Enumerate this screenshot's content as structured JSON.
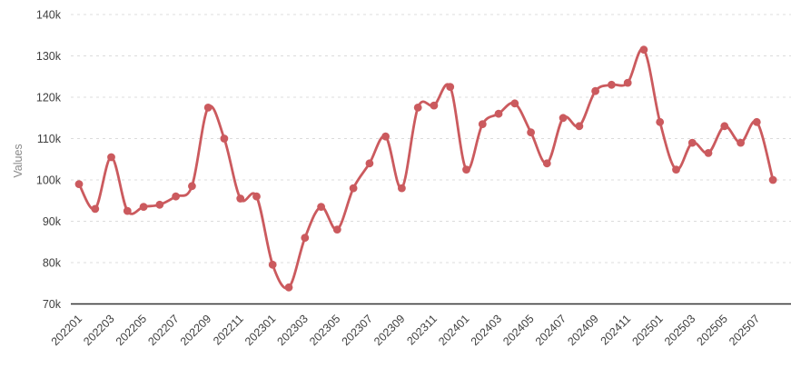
{
  "chart_data": {
    "type": "line",
    "title": "",
    "xlabel": "",
    "ylabel": "Values",
    "smooth": true,
    "grid": true,
    "legend": false,
    "x_labels_rotation": -45,
    "x_label_every": 2,
    "ylim": [
      70000,
      140000
    ],
    "y_ticks": [
      70000,
      80000,
      90000,
      100000,
      110000,
      120000,
      130000,
      140000
    ],
    "y_tick_labels": [
      "70k",
      "80k",
      "90k",
      "100k",
      "110k",
      "120k",
      "130k",
      "140k"
    ],
    "x_tick_labels_shown": [
      "202201",
      "202203",
      "202205",
      "202207",
      "202209",
      "202211",
      "202301",
      "202303",
      "202305",
      "202307",
      "202309",
      "202311",
      "202401",
      "202403",
      "202405",
      "202407",
      "202409",
      "202411",
      "202501",
      "202503",
      "202505",
      "202507"
    ],
    "x": [
      "202201",
      "202202",
      "202203",
      "202204",
      "202205",
      "202206",
      "202207",
      "202208",
      "202209",
      "202210",
      "202211",
      "202212",
      "202301",
      "202302",
      "202303",
      "202304",
      "202305",
      "202306",
      "202307",
      "202308",
      "202309",
      "202310",
      "202311",
      "202312",
      "202401",
      "202402",
      "202403",
      "202404",
      "202405",
      "202406",
      "202407",
      "202408",
      "202409",
      "202410",
      "202411",
      "202412",
      "202501",
      "202502",
      "202503",
      "202504",
      "202505",
      "202506",
      "202507",
      "202508"
    ],
    "values": [
      99000,
      93000,
      105500,
      92500,
      93500,
      94000,
      96000,
      98500,
      117500,
      110000,
      95500,
      96000,
      79500,
      74000,
      86000,
      93500,
      88000,
      98000,
      104000,
      110500,
      98000,
      117500,
      118000,
      122500,
      102500,
      113500,
      116000,
      118500,
      111500,
      104000,
      115000,
      113000,
      121500,
      123000,
      123500,
      131500,
      114000,
      102500,
      109000,
      106500,
      113000,
      109000,
      114000,
      100000
    ],
    "line_color": "#cb5a5e",
    "point_color": "#cb5a5e",
    "grid_color": "#dcdcdc",
    "axis_line_color": "#333333",
    "tick_label_color": "#404040",
    "axis_title_color": "#8a8a8a"
  }
}
